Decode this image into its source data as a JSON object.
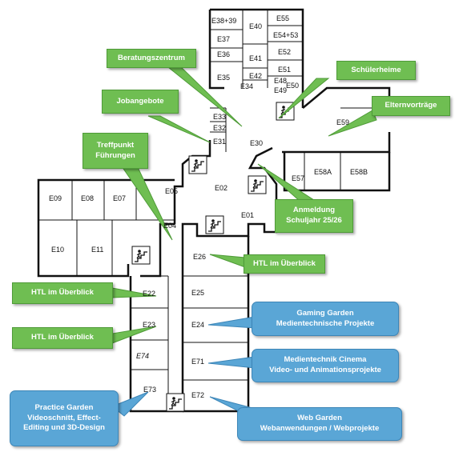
{
  "map": {
    "rooms": {
      "E38_39": "E38+39",
      "E40": "E40",
      "E55": "E55",
      "E37": "E37",
      "E54_53": "E54+53",
      "E36": "E36",
      "E41": "E41",
      "E52": "E52",
      "E35": "E35",
      "E42": "E42",
      "E51": "E51",
      "E34": "E34",
      "E48": "E48",
      "E50": "E50",
      "E49": "E49",
      "E33": "E33",
      "E32": "E32",
      "E31": "E31",
      "E30": "E30",
      "E59": "E59",
      "E57": "E57",
      "E58A": "E58A",
      "E58B": "E58B",
      "E02": "E02",
      "E05": "E05",
      "E09": "E09",
      "E08": "E08",
      "E07": "E07",
      "E04": "E04",
      "E01": "E01",
      "E10": "E10",
      "E11": "E11",
      "E26": "E26",
      "E22": "E22",
      "E25": "E25",
      "E23": "E23",
      "E24": "E24",
      "E74": "E74",
      "E71": "E71",
      "E73": "E73",
      "E72": "E72"
    },
    "callouts": {
      "beratungszentrum": "Beratungszentrum",
      "schuelerheime": "Schülerheime",
      "jobangebote": "Jobangebote",
      "elternvortraege": "Elternvorträge",
      "treffpunkt": "Treffpunkt\nFührungen",
      "anmeldung": "Anmeldung\nSchuljahr 25/26",
      "htl_e26": "HTL im Überblick",
      "htl_e22": "HTL im Überblick",
      "htl_e23": "HTL im Überblick",
      "gaming_garden": "Gaming Garden\nMedientechnische Projekte",
      "medientechnik_cinema": "Medientechnik Cinema\nVideo- und Animationsprojekte",
      "practice_garden": "Practice Garden\nVideoschnitt, Effect-\nEditing und 3D-Design",
      "web_garden": "Web Garden\nWebanwendungen / Webprojekte"
    },
    "colors": {
      "green": "#6fbe52",
      "blue": "#5aa6d6",
      "walls": "#111111"
    },
    "icons": [
      "stairs-icon"
    ]
  }
}
